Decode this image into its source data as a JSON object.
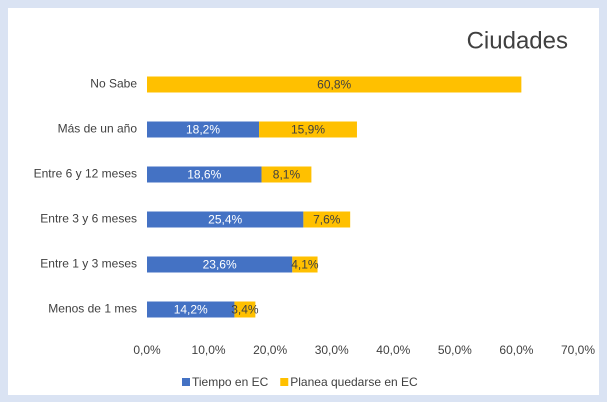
{
  "chart_data": {
    "type": "stacked-barh",
    "title": "Ciudades",
    "categories": [
      "No Sabe",
      "Más de un año",
      "Entre 6 y 12 meses",
      "Entre 3 y 6 meses",
      "Entre 1 y 3 meses",
      "Menos de 1 mes"
    ],
    "series": [
      {
        "name": "Tiempo en EC",
        "color": "#4472c4",
        "values": [
          null,
          18.2,
          18.6,
          25.4,
          23.6,
          14.2
        ],
        "value_labels": [
          null,
          "18,2%",
          "18,6%",
          "25,4%",
          "23,6%",
          "14,2%"
        ]
      },
      {
        "name": "Planea quedarse en EC",
        "color": "#ffc000",
        "values": [
          60.8,
          15.9,
          8.1,
          7.6,
          4.1,
          3.4
        ],
        "value_labels": [
          "60,8%",
          "15,9%",
          "8,1%",
          "7,6%",
          "4,1%",
          "3,4%"
        ]
      }
    ],
    "xlim": [
      0,
      70
    ],
    "xticks": [
      {
        "value": 0,
        "label": "0,0%"
      },
      {
        "value": 10,
        "label": "10,0%"
      },
      {
        "value": 20,
        "label": "20,0%"
      },
      {
        "value": 30,
        "label": "30,0%"
      },
      {
        "value": 40,
        "label": "40,0%"
      },
      {
        "value": 50,
        "label": "50,0%"
      },
      {
        "value": 60,
        "label": "60,0%"
      },
      {
        "value": 70,
        "label": "70,0%"
      }
    ],
    "legend": "bottom"
  }
}
